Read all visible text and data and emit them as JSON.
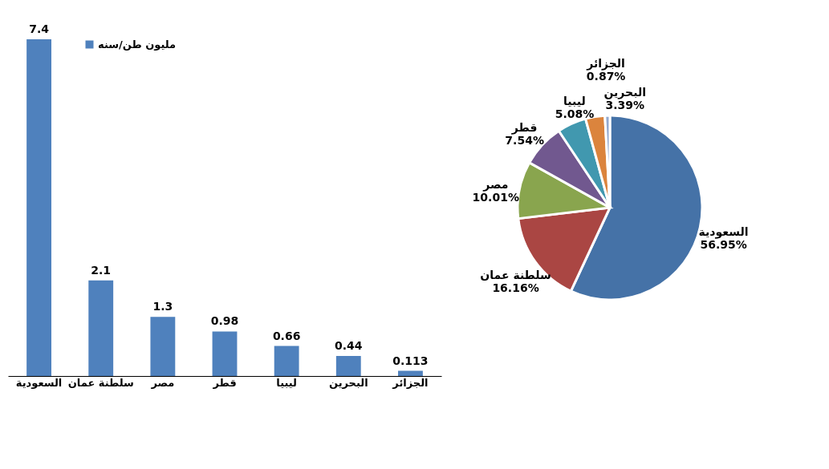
{
  "chart_data": [
    {
      "type": "bar",
      "categories": [
        "السعودية",
        "سلطنة عمان",
        "مصر",
        "قطر",
        "ليبيا",
        "البحرين",
        "الجزائر"
      ],
      "series": [
        {
          "name": "مليون طن/سنه",
          "color": "#4f81bd",
          "values": [
            7.4,
            2.1,
            1.3,
            0.98,
            0.66,
            0.44,
            0.113
          ]
        }
      ],
      "data_labels": true,
      "legend": "top left",
      "grid": false
    },
    {
      "type": "pie",
      "categories": [
        "السعودية",
        "سلطنة عمان",
        "مصر",
        "قطر",
        "ليبيا",
        "البحرين",
        "الجزائر"
      ],
      "values": [
        56.95,
        16.16,
        10.01,
        7.54,
        5.08,
        3.39,
        0.87
      ],
      "value_labels": [
        "56.95%",
        "16.16%",
        "10.01%",
        "7.54%",
        "5.08%",
        "3.39%",
        "0.87%"
      ],
      "colors": [
        "#4572a7",
        "#aa4643",
        "#89a54e",
        "#71588f",
        "#4198af",
        "#db843d",
        "#93a9cf"
      ],
      "legend": false
    }
  ]
}
